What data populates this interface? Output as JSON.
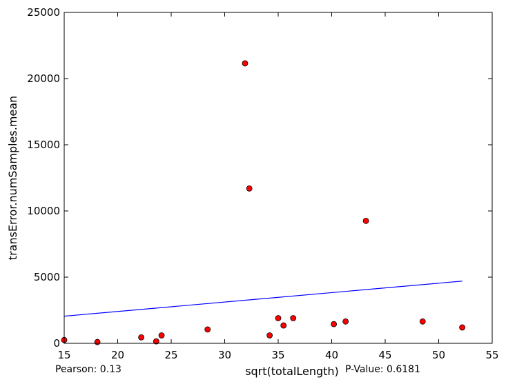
{
  "chart_data": {
    "type": "scatter",
    "xlabel": "sqrt(totalLength)",
    "ylabel": "transError.numSamples.mean",
    "xlim": [
      15,
      55
    ],
    "ylim": [
      0,
      25000
    ],
    "xticks": [
      15,
      20,
      25,
      30,
      35,
      40,
      45,
      50,
      55
    ],
    "yticks": [
      0,
      5000,
      10000,
      15000,
      20000,
      25000
    ],
    "grid": false,
    "points": [
      {
        "x": 15.0,
        "y": 250
      },
      {
        "x": 18.1,
        "y": 100
      },
      {
        "x": 22.2,
        "y": 450
      },
      {
        "x": 23.6,
        "y": 150
      },
      {
        "x": 24.1,
        "y": 600
      },
      {
        "x": 28.4,
        "y": 1050
      },
      {
        "x": 31.9,
        "y": 21150
      },
      {
        "x": 32.3,
        "y": 11700
      },
      {
        "x": 34.2,
        "y": 600
      },
      {
        "x": 35.0,
        "y": 1900
      },
      {
        "x": 35.5,
        "y": 1350
      },
      {
        "x": 36.4,
        "y": 1900
      },
      {
        "x": 40.2,
        "y": 1450
      },
      {
        "x": 41.3,
        "y": 1650
      },
      {
        "x": 43.2,
        "y": 9250
      },
      {
        "x": 48.5,
        "y": 1650
      },
      {
        "x": 52.2,
        "y": 1200
      }
    ],
    "fit_line": {
      "x": [
        15.0,
        52.2
      ],
      "y": [
        2050,
        4700
      ]
    },
    "marker_color": "#ff0000",
    "line_color": "#0000ff"
  },
  "stats": {
    "pearson": "Pearson: 0.13",
    "pvalue": "P-Value: 0.6181"
  }
}
